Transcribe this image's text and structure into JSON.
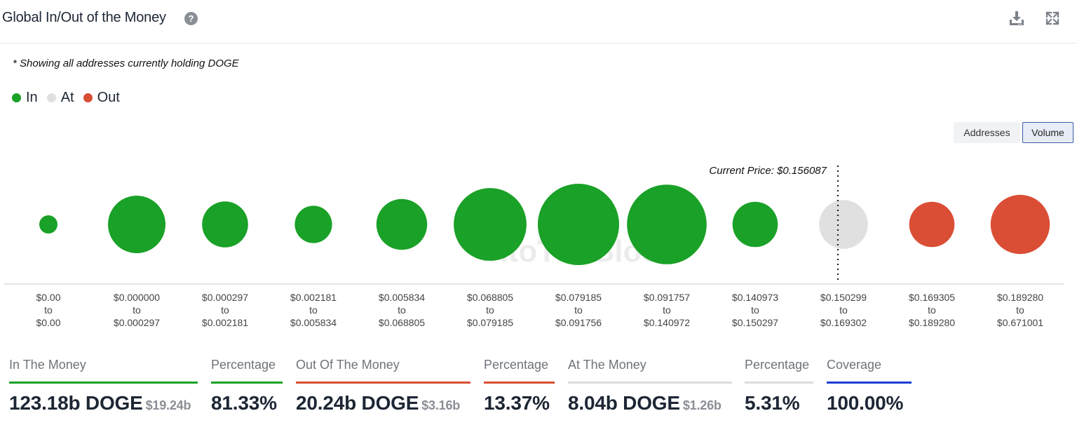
{
  "header": {
    "title": "Global In/Out of the Money",
    "help_icon": "?",
    "download_icon": "download-icon",
    "expand_icon": "expand-icon"
  },
  "note": "* Showing all addresses currently holding DOGE",
  "legend": [
    {
      "label": "In",
      "color": "#1aa127"
    },
    {
      "label": "At",
      "color": "#e0e0e0"
    },
    {
      "label": "Out",
      "color": "#da4e35"
    }
  ],
  "toggles": {
    "addresses": "Addresses",
    "volume": "Volume",
    "active": "Volume"
  },
  "chart_data": {
    "type": "bubble",
    "title": "Global In/Out of the Money",
    "current_price_label": "Current Price: $0.156087",
    "current_price": 0.156087,
    "watermark": "IntoTheBlock",
    "bins": [
      {
        "from": "$0.00",
        "to": "$0.00",
        "status": "in",
        "relative_volume": 0.05
      },
      {
        "from": "$0.000000",
        "to": "$0.000297",
        "status": "in",
        "relative_volume": 0.5
      },
      {
        "from": "$0.000297",
        "to": "$0.002181",
        "status": "in",
        "relative_volume": 0.32
      },
      {
        "from": "$0.002181",
        "to": "$0.005834",
        "status": "in",
        "relative_volume": 0.21
      },
      {
        "from": "$0.005834",
        "to": "$0.068805",
        "status": "in",
        "relative_volume": 0.39
      },
      {
        "from": "$0.068805",
        "to": "$0.079185",
        "status": "in",
        "relative_volume": 0.8
      },
      {
        "from": "$0.079185",
        "to": "$0.091756",
        "status": "in",
        "relative_volume": 1.0
      },
      {
        "from": "$0.091757",
        "to": "$0.140972",
        "status": "in",
        "relative_volume": 0.96
      },
      {
        "from": "$0.140973",
        "to": "$0.150297",
        "status": "in",
        "relative_volume": 0.31
      },
      {
        "from": "$0.150299",
        "to": "$0.169302",
        "status": "at",
        "relative_volume": 0.36
      },
      {
        "from": "$0.169305",
        "to": "$0.189280",
        "status": "out",
        "relative_volume": 0.31
      },
      {
        "from": "$0.189280",
        "to": "$0.671001",
        "status": "out",
        "relative_volume": 0.53
      }
    ],
    "connector": "to",
    "colors": {
      "in": "#1aa127",
      "at": "#e0e0e0",
      "out": "#da4e35"
    }
  },
  "stats": [
    {
      "label": "In The Money",
      "value": "123.18b DOGE",
      "sub": "$19.24b",
      "color": "#1aa127"
    },
    {
      "label": "Percentage",
      "value": "81.33%",
      "sub": "",
      "color": "#1aa127"
    },
    {
      "label": "Out Of The Money",
      "value": "20.24b DOGE",
      "sub": "$3.16b",
      "color": "#da4e35"
    },
    {
      "label": "Percentage",
      "value": "13.37%",
      "sub": "",
      "color": "#da4e35"
    },
    {
      "label": "At The Money",
      "value": "8.04b DOGE",
      "sub": "$1.26b",
      "color": "#dcdcdc"
    },
    {
      "label": "Percentage",
      "value": "5.31%",
      "sub": "",
      "color": "#dcdcdc"
    },
    {
      "label": "Coverage",
      "value": "100.00%",
      "sub": "",
      "color": "#1c3fd6"
    }
  ]
}
